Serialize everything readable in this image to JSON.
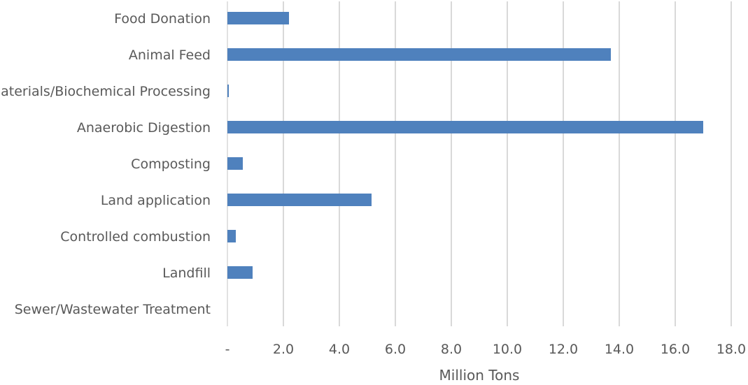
{
  "chart_data": {
    "type": "bar",
    "orientation": "horizontal",
    "categories": [
      "Food Donation",
      "Animal Feed",
      "Co-digestion/Materials/Biochemical Processing",
      "Anaerobic Digestion",
      "Composting",
      "Land application",
      "Controlled combustion",
      "Landfill",
      "Sewer/Wastewater Treatment"
    ],
    "visible_labels": [
      "Food Donation",
      "Animal Feed",
      "aterials/Biochemical Processing",
      "Anaerobic Digestion",
      "Composting",
      "Land application",
      "Controlled combustion",
      "Landfill",
      "Sewer/Wastewater Treatment"
    ],
    "values": [
      2.2,
      13.7,
      0.05,
      17.0,
      0.55,
      5.15,
      0.3,
      0.9,
      0.0
    ],
    "xlabel": "Million Tons",
    "xlim": [
      0,
      18
    ],
    "ticks": [
      0,
      2,
      4,
      6,
      8,
      10,
      12,
      14,
      16,
      18
    ],
    "tick_labels": [
      "-",
      "2.0",
      "4.0",
      "6.0",
      "8.0",
      "10.0",
      "12.0",
      "14.0",
      "16.0",
      "18.0"
    ],
    "grid": true,
    "legend": "none",
    "bar_color": "#4f81bd"
  }
}
